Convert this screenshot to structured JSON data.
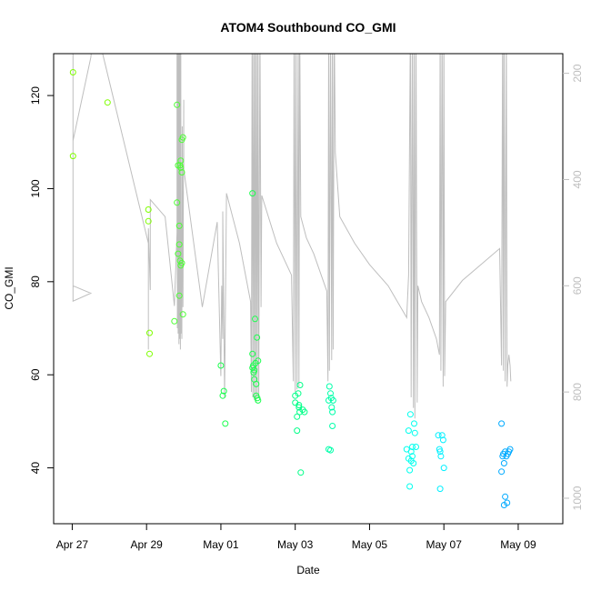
{
  "chart_data": {
    "type": "scatter",
    "title": "ATOM4 Southbound CO_GMI",
    "xlabel": "Date",
    "ylabel": "CO_GMI",
    "x_ticks": [
      "Apr 27",
      "Apr 29",
      "May 01",
      "May 03",
      "May 05",
      "May 07",
      "May 09"
    ],
    "x_tick_days": [
      0,
      2,
      4,
      6,
      8,
      10,
      12
    ],
    "y_ticks": [
      40,
      60,
      80,
      100,
      120
    ],
    "ylim": [
      28,
      129
    ],
    "xlim": [
      -0.5,
      13.2
    ],
    "y2_ticks": [
      200,
      400,
      600,
      800,
      1000
    ],
    "y2lim": [
      1048,
      163
    ],
    "grid": false,
    "colors": {
      "axis": "#000000",
      "pressure_line": "#bebebe",
      "right_axis": "#bebebe"
    },
    "series": [
      {
        "color": "#7FFF00",
        "points": [
          [
            0.02,
            125
          ],
          [
            0.02,
            107
          ],
          [
            0.95,
            118.5
          ],
          [
            2.05,
            95.5
          ],
          [
            2.05,
            93
          ],
          [
            2.08,
            69
          ],
          [
            2.08,
            64.5
          ]
        ]
      },
      {
        "color": "#4CFF33",
        "points": [
          [
            2.75,
            71.5
          ],
          [
            2.82,
            118
          ],
          [
            2.82,
            97
          ],
          [
            2.85,
            105
          ],
          [
            2.85,
            86
          ],
          [
            2.88,
            92
          ],
          [
            2.88,
            88
          ],
          [
            2.88,
            77
          ],
          [
            2.9,
            105
          ],
          [
            2.9,
            84.5
          ],
          [
            2.92,
            106
          ],
          [
            2.92,
            104.5
          ],
          [
            2.92,
            83.5
          ],
          [
            2.95,
            110.5
          ],
          [
            2.95,
            103.5
          ],
          [
            2.95,
            84
          ],
          [
            2.98,
            111
          ],
          [
            2.98,
            73
          ]
        ]
      },
      {
        "color": "#1AFF4D",
        "points": [
          [
            4.0,
            62
          ],
          [
            4.05,
            55.5
          ],
          [
            4.08,
            56.5
          ],
          [
            4.12,
            49.5
          ],
          [
            4.85,
            99
          ],
          [
            4.85,
            64.5
          ],
          [
            4.85,
            61.5
          ],
          [
            4.87,
            62
          ],
          [
            4.88,
            60.5
          ],
          [
            4.9,
            61
          ],
          [
            4.9,
            59
          ],
          [
            4.92,
            72
          ],
          [
            4.93,
            62.5
          ],
          [
            4.95,
            58
          ],
          [
            4.95,
            55.5
          ],
          [
            4.97,
            68
          ],
          [
            4.98,
            55
          ],
          [
            5.0,
            63
          ],
          [
            5.0,
            54.5
          ]
        ]
      },
      {
        "color": "#00FF88",
        "points": [
          [
            6.0,
            55.5
          ],
          [
            6.0,
            54
          ],
          [
            6.05,
            48
          ],
          [
            6.05,
            51
          ],
          [
            6.08,
            56
          ],
          [
            6.1,
            53
          ],
          [
            6.1,
            53.5
          ],
          [
            6.12,
            52
          ],
          [
            6.13,
            57.8
          ],
          [
            6.15,
            39
          ],
          [
            6.2,
            52.5
          ],
          [
            6.25,
            52
          ]
        ]
      },
      {
        "color": "#00FFAA",
        "points": [
          [
            6.9,
            54.5
          ],
          [
            6.9,
            44
          ],
          [
            6.92,
            57.5
          ],
          [
            6.95,
            56
          ],
          [
            6.95,
            43.8
          ],
          [
            6.97,
            55
          ],
          [
            6.98,
            53
          ],
          [
            7.0,
            52
          ],
          [
            7.0,
            49
          ],
          [
            7.02,
            54.5
          ]
        ]
      },
      {
        "color": "#00FFEE",
        "points": [
          [
            9.0,
            44
          ],
          [
            9.05,
            48
          ],
          [
            9.05,
            42
          ],
          [
            9.08,
            39.5
          ],
          [
            9.08,
            36
          ],
          [
            9.1,
            51.5
          ],
          [
            9.12,
            41.5
          ],
          [
            9.12,
            43.5
          ],
          [
            9.15,
            44.5
          ],
          [
            9.15,
            42.5
          ],
          [
            9.18,
            41
          ],
          [
            9.2,
            49.5
          ],
          [
            9.22,
            47.5
          ],
          [
            9.25,
            44.5
          ]
        ]
      },
      {
        "color": "#00F0FF",
        "points": [
          [
            9.85,
            47
          ],
          [
            9.88,
            44
          ],
          [
            9.9,
            43.5
          ],
          [
            9.9,
            35.5
          ],
          [
            9.92,
            42.5
          ],
          [
            9.95,
            47
          ],
          [
            9.98,
            46
          ],
          [
            10.0,
            40
          ]
        ]
      },
      {
        "color": "#00AAFF",
        "points": [
          [
            11.55,
            49.5
          ],
          [
            11.55,
            39.2
          ],
          [
            11.58,
            42.5
          ],
          [
            11.6,
            43
          ],
          [
            11.62,
            32
          ],
          [
            11.62,
            41
          ],
          [
            11.65,
            33.8
          ],
          [
            11.65,
            43.5
          ],
          [
            11.68,
            42.5
          ],
          [
            11.7,
            32.5
          ],
          [
            11.72,
            43
          ],
          [
            11.75,
            43.5
          ],
          [
            11.78,
            44
          ]
        ]
      }
    ],
    "pressure_line": [
      [
        0.02,
        0
      ],
      [
        0.02,
        600
      ],
      [
        0.5,
        614
      ],
      [
        0.02,
        629
      ],
      [
        0.02,
        327
      ],
      [
        0.5,
        170
      ],
      [
        0.6,
        100
      ],
      [
        2.05,
        520
      ],
      [
        2.05,
        720
      ],
      [
        2.05,
        492
      ],
      [
        2.1,
        608
      ],
      [
        2.1,
        438
      ],
      [
        2.5,
        470
      ],
      [
        2.75,
        638
      ],
      [
        2.82,
        500
      ],
      [
        2.82,
        100
      ],
      [
        2.83,
        680
      ],
      [
        2.84,
        100
      ],
      [
        2.85,
        690
      ],
      [
        2.86,
        100
      ],
      [
        2.87,
        710
      ],
      [
        2.88,
        100
      ],
      [
        2.89,
        700
      ],
      [
        2.9,
        100
      ],
      [
        2.91,
        720
      ],
      [
        2.92,
        100
      ],
      [
        2.93,
        690
      ],
      [
        2.94,
        480
      ],
      [
        2.95,
        700
      ],
      [
        2.96,
        300
      ],
      [
        2.98,
        640
      ],
      [
        3.0,
        250
      ],
      [
        3.0,
        380
      ],
      [
        3.5,
        640
      ],
      [
        3.9,
        480
      ],
      [
        4.0,
        770
      ],
      [
        4.02,
        600
      ],
      [
        4.05,
        700
      ],
      [
        4.05,
        460
      ],
      [
        4.1,
        810
      ],
      [
        4.15,
        426
      ],
      [
        4.5,
        520
      ],
      [
        4.8,
        630
      ],
      [
        4.82,
        800
      ],
      [
        4.84,
        100
      ],
      [
        4.86,
        810
      ],
      [
        4.88,
        100
      ],
      [
        4.9,
        815
      ],
      [
        4.92,
        100
      ],
      [
        4.94,
        820
      ],
      [
        4.96,
        100
      ],
      [
        4.98,
        810
      ],
      [
        5.0,
        100
      ],
      [
        5.02,
        808
      ],
      [
        5.05,
        100
      ],
      [
        5.08,
        640
      ],
      [
        5.1,
        430
      ],
      [
        5.5,
        520
      ],
      [
        5.9,
        580
      ],
      [
        5.95,
        780
      ],
      [
        5.97,
        100
      ],
      [
        6.0,
        800
      ],
      [
        6.02,
        100
      ],
      [
        6.05,
        795
      ],
      [
        6.08,
        100
      ],
      [
        6.1,
        790
      ],
      [
        6.12,
        100
      ],
      [
        6.15,
        470
      ],
      [
        6.3,
        510
      ],
      [
        6.5,
        540
      ],
      [
        6.85,
        610
      ],
      [
        6.88,
        780
      ],
      [
        6.9,
        100
      ],
      [
        6.92,
        760
      ],
      [
        6.95,
        100
      ],
      [
        6.98,
        740
      ],
      [
        7.0,
        100
      ],
      [
        7.02,
        720
      ],
      [
        7.02,
        720
      ],
      [
        7.05,
        100
      ],
      [
        7.08,
        350
      ],
      [
        7.2,
        470
      ],
      [
        7.6,
        520
      ],
      [
        8.0,
        560
      ],
      [
        8.5,
        600
      ],
      [
        9.0,
        660
      ],
      [
        9.05,
        580
      ],
      [
        9.1,
        100
      ],
      [
        9.12,
        810
      ],
      [
        9.15,
        100
      ],
      [
        9.18,
        830
      ],
      [
        9.2,
        100
      ],
      [
        9.22,
        850
      ],
      [
        9.25,
        100
      ],
      [
        9.28,
        820
      ],
      [
        9.3,
        600
      ],
      [
        9.4,
        630
      ],
      [
        9.6,
        660
      ],
      [
        9.8,
        700
      ],
      [
        9.88,
        730
      ],
      [
        9.9,
        100
      ],
      [
        9.92,
        760
      ],
      [
        9.95,
        100
      ],
      [
        9.98,
        790
      ],
      [
        10.0,
        100
      ],
      [
        10.02,
        770
      ],
      [
        10.05,
        630
      ],
      [
        10.5,
        590
      ],
      [
        11.0,
        560
      ],
      [
        11.5,
        530
      ],
      [
        11.55,
        750
      ],
      [
        11.58,
        100
      ],
      [
        11.6,
        760
      ],
      [
        11.62,
        100
      ],
      [
        11.65,
        780
      ],
      [
        11.68,
        100
      ],
      [
        11.7,
        790
      ],
      [
        11.72,
        750
      ],
      [
        11.75,
        730
      ],
      [
        11.78,
        750
      ],
      [
        11.8,
        780
      ]
    ]
  }
}
